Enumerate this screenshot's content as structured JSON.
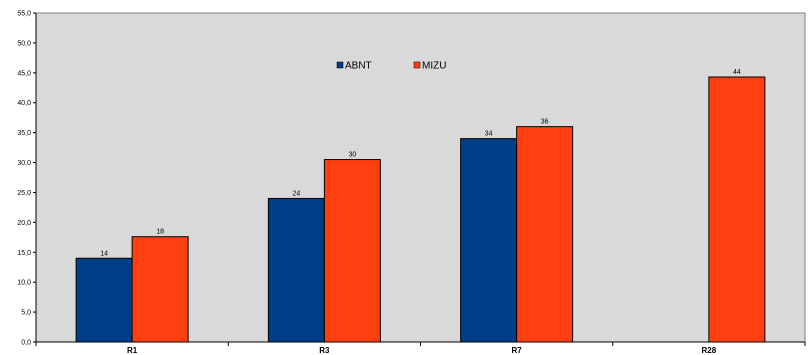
{
  "chart_data": {
    "type": "bar",
    "categories": [
      "R1",
      "R3",
      "R7",
      "R28"
    ],
    "series": [
      {
        "name": "ABNT",
        "values": [
          14,
          24,
          34,
          null
        ],
        "labels": [
          "14",
          "24",
          "34",
          ""
        ],
        "color": "#003f87"
      },
      {
        "name": "MIZU",
        "values": [
          17.6,
          30.5,
          36,
          44.3
        ],
        "labels": [
          "18",
          "30",
          "36",
          "44"
        ],
        "color": "#ff3f0f"
      }
    ],
    "ylim": [
      0,
      55
    ],
    "ytick_step": 5,
    "ytick_labels": [
      "0,0",
      "5,0",
      "10,0",
      "15,0",
      "20,0",
      "25,0",
      "30,0",
      "35,0",
      "40,0",
      "45,0",
      "50,0",
      "55,0"
    ],
    "plot_background": "#d9d9d9",
    "grid": false,
    "legend": "top-center",
    "title": "",
    "xlabel": "",
    "ylabel": ""
  }
}
